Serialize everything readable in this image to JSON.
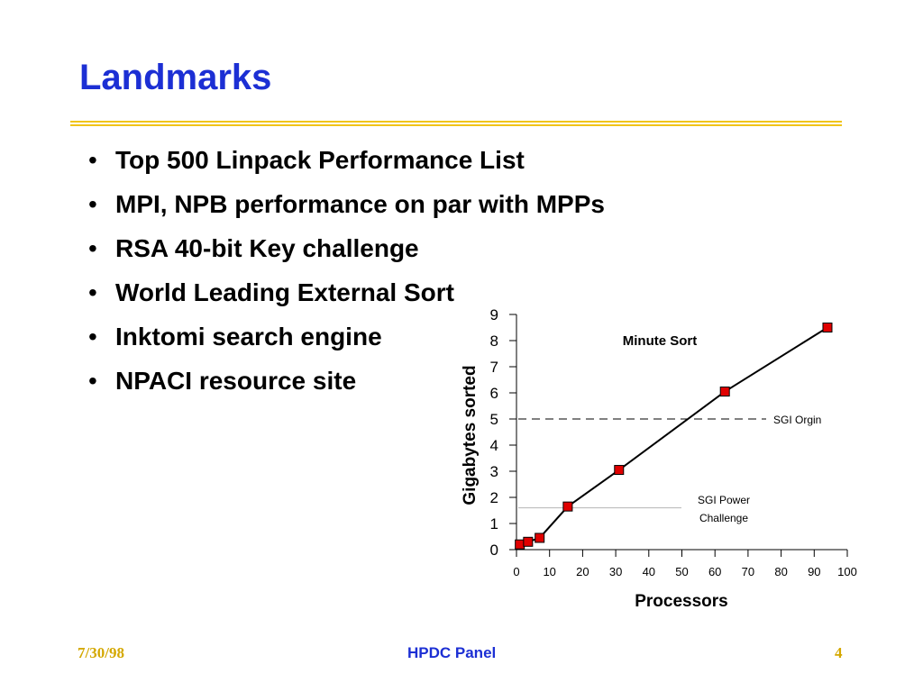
{
  "slide": {
    "title": "Landmarks",
    "bullets": [
      "Top 500 Linpack Performance List",
      "MPI, NPB performance on par with MPPs",
      "RSA 40-bit Key challenge",
      "World Leading External Sort",
      "Inktomi search engine",
      "NPACI resource site"
    ],
    "bullet_symbol": "•",
    "footer": {
      "date": "7/30/98",
      "center": "HPDC Panel",
      "page": "4"
    },
    "colors": {
      "title": "#1c2fd4",
      "rule": "#f0c419",
      "footer_side": "#d4a800",
      "marker_fill": "#e00000"
    }
  },
  "chart_data": {
    "type": "line",
    "title": "Minute Sort",
    "xlabel": "Processors",
    "ylabel": "Gigabytes sorted",
    "xlim": [
      0,
      100
    ],
    "ylim": [
      0,
      9
    ],
    "x_ticks": [
      0,
      10,
      20,
      30,
      40,
      50,
      60,
      70,
      80,
      90,
      100
    ],
    "y_ticks": [
      0,
      1,
      2,
      3,
      4,
      5,
      6,
      7,
      8,
      9
    ],
    "grid": false,
    "series": [
      {
        "points": [
          {
            "x": 1,
            "y": 0.2
          },
          {
            "x": 3.5,
            "y": 0.3
          },
          {
            "x": 7,
            "y": 0.45
          },
          {
            "x": 15.5,
            "y": 1.65
          },
          {
            "x": 31,
            "y": 3.05
          },
          {
            "x": 63,
            "y": 6.05
          },
          {
            "x": 94,
            "y": 8.5
          }
        ]
      }
    ],
    "reference_lines": [
      {
        "label": "SGI Orgin",
        "y": 5,
        "style": "dashed"
      },
      {
        "label_lines": [
          "SGI Power",
          "Challenge"
        ],
        "y": 1.6,
        "style": "solid-light"
      }
    ]
  }
}
